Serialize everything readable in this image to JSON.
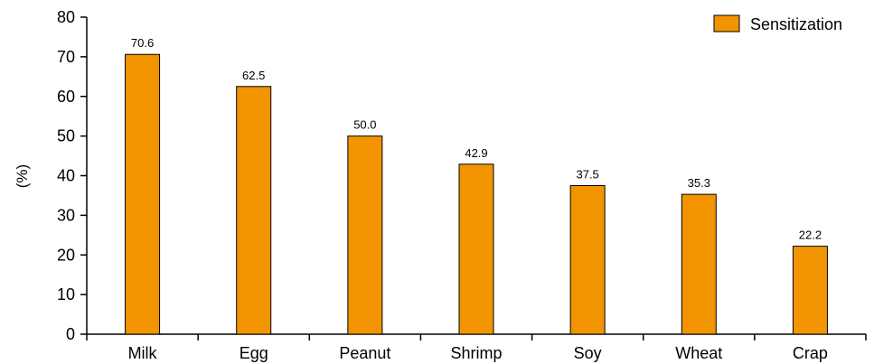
{
  "chart_data": {
    "type": "bar",
    "categories": [
      "Milk",
      "Egg",
      "Peanut",
      "Shrimp",
      "Soy",
      "Wheat",
      "Crap"
    ],
    "series": [
      {
        "name": "Sensitization",
        "values": [
          70.6,
          62.5,
          50.0,
          42.9,
          37.5,
          35.3,
          22.2
        ]
      }
    ],
    "data_labels": [
      "70.6",
      "62.5",
      "50.0",
      "42.9",
      "37.5",
      "35.3",
      "22.2"
    ],
    "title": "",
    "xlabel": "",
    "ylabel": "(%)",
    "ylim": [
      0,
      80
    ],
    "yticks": [
      "0",
      "10",
      "20",
      "30",
      "40",
      "50",
      "60",
      "70",
      "80"
    ],
    "grid": false,
    "legend_position": "top-right",
    "bar_color": "#F29400",
    "bar_edge_color": "#000000"
  }
}
